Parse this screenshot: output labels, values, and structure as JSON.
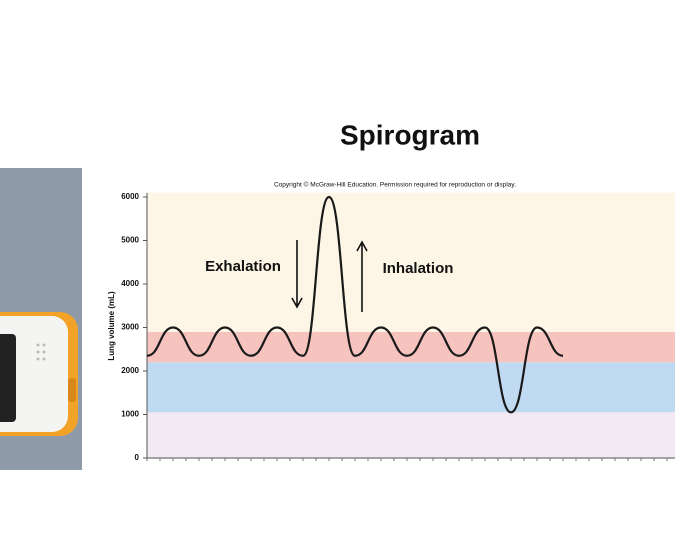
{
  "chart_data": {
    "type": "line",
    "title": "Spirogram",
    "subtitle": "Copyright © McGraw-Hill Education. Permission required for reproduction or display.",
    "ylabel": "Lung volume (mL)",
    "annotations": [
      "Exhalation",
      "Inhalation"
    ],
    "categories": [
      null,
      null,
      null,
      null,
      null,
      null,
      null,
      null,
      null,
      null,
      null,
      null,
      null,
      null,
      null,
      null,
      null
    ],
    "series": [
      {
        "name": null,
        "color": "#1a1a1a",
        "values": [
          2350,
          3000,
          2350,
          3000,
          2350,
          3000,
          2350,
          6000,
          2350,
          3000,
          2350,
          3000,
          2350,
          3000,
          1050,
          3000,
          2350
        ]
      }
    ],
    "bands": [
      {
        "from": 0,
        "to": 1050,
        "color": "#f3e9f4"
      },
      {
        "from": 1050,
        "to": 2200,
        "color": "#bfdaf1"
      },
      {
        "from": 2200,
        "to": 2900,
        "color": "#f6c3be"
      },
      {
        "from": 2900,
        "to": 6100,
        "color": "#fdf6e7"
      }
    ],
    "ylim": [
      0,
      6000
    ],
    "yticks": [
      0,
      1000,
      2000,
      3000,
      4000,
      5000,
      6000
    ]
  }
}
